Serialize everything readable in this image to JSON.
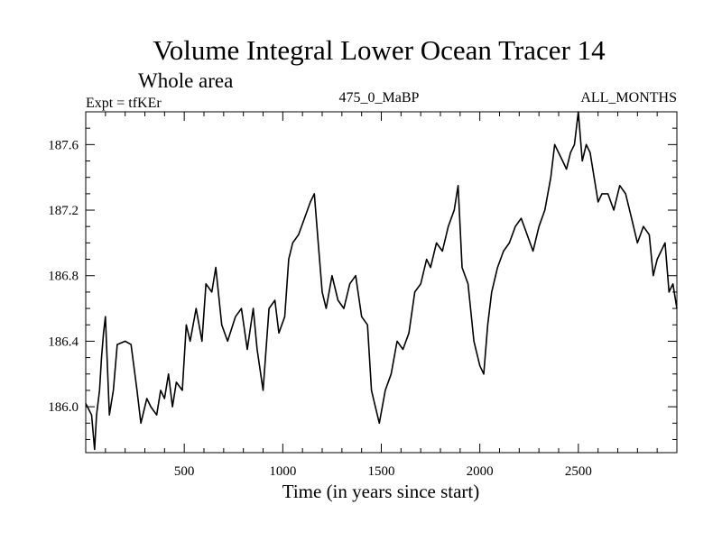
{
  "chart_data": {
    "type": "line",
    "title": "Volume Integral Lower Ocean Tracer 14",
    "subtitle": "Whole area",
    "left_label": "Expt = tfKEr",
    "center_label": "475_0_MaBP",
    "right_label": "ALL_MONTHS",
    "xlabel": "Time (in years since start)",
    "ylabel": "",
    "xlim": [
      0,
      3000
    ],
    "ylim": [
      185.72,
      187.8
    ],
    "xticks": [
      500,
      1000,
      1500,
      2000,
      2500
    ],
    "xtick_labels": [
      "500",
      "1000",
      "1500",
      "2000",
      "2500"
    ],
    "yticks": [
      186.0,
      186.4,
      186.8,
      187.2,
      187.6
    ],
    "ytick_labels": [
      "186.0",
      "186.4",
      "186.8",
      "187.2",
      "187.6"
    ],
    "grid": false,
    "series": [
      {
        "color": "#000000",
        "x": [
          0,
          30,
          45,
          55,
          70,
          80,
          90,
          100,
          120,
          140,
          160,
          200,
          230,
          260,
          280,
          310,
          330,
          360,
          380,
          400,
          420,
          440,
          460,
          490,
          510,
          530,
          560,
          590,
          610,
          640,
          660,
          690,
          720,
          760,
          790,
          820,
          850,
          870,
          900,
          930,
          960,
          980,
          1010,
          1030,
          1050,
          1080,
          1110,
          1140,
          1160,
          1180,
          1200,
          1220,
          1250,
          1280,
          1310,
          1340,
          1370,
          1400,
          1430,
          1450,
          1470,
          1490,
          1520,
          1550,
          1580,
          1610,
          1640,
          1670,
          1700,
          1730,
          1750,
          1780,
          1810,
          1840,
          1870,
          1890,
          1910,
          1940,
          1970,
          2000,
          2020,
          2040,
          2060,
          2090,
          2120,
          2150,
          2180,
          2210,
          2240,
          2270,
          2300,
          2330,
          2360,
          2380,
          2400,
          2420,
          2440,
          2460,
          2480,
          2500,
          2520,
          2540,
          2560,
          2580,
          2600,
          2620,
          2650,
          2680,
          2710,
          2740,
          2770,
          2800,
          2830,
          2860,
          2880,
          2900,
          2920,
          2940,
          2960,
          2980,
          3000
        ],
        "y": [
          186.02,
          185.95,
          185.74,
          185.95,
          186.1,
          186.3,
          186.45,
          186.55,
          185.95,
          186.1,
          186.38,
          186.4,
          186.38,
          186.1,
          185.9,
          186.05,
          186.0,
          185.95,
          186.1,
          186.05,
          186.2,
          186.0,
          186.15,
          186.1,
          186.5,
          186.4,
          186.6,
          186.4,
          186.75,
          186.7,
          186.85,
          186.5,
          186.4,
          186.55,
          186.6,
          186.35,
          186.6,
          186.35,
          186.1,
          186.6,
          186.65,
          186.45,
          186.55,
          186.9,
          187.0,
          187.05,
          187.15,
          187.25,
          187.3,
          187.0,
          186.7,
          186.6,
          186.8,
          186.65,
          186.6,
          186.75,
          186.8,
          186.55,
          186.5,
          186.1,
          186.0,
          185.9,
          186.1,
          186.2,
          186.4,
          186.35,
          186.45,
          186.7,
          186.75,
          186.9,
          186.85,
          187.0,
          186.95,
          187.1,
          187.2,
          187.35,
          186.85,
          186.75,
          186.4,
          186.25,
          186.2,
          186.5,
          186.7,
          186.85,
          186.95,
          187.0,
          187.1,
          187.15,
          187.05,
          186.95,
          187.1,
          187.2,
          187.4,
          187.6,
          187.55,
          187.5,
          187.45,
          187.55,
          187.6,
          187.8,
          187.5,
          187.6,
          187.55,
          187.4,
          187.25,
          187.3,
          187.3,
          187.2,
          187.35,
          187.3,
          187.15,
          187.0,
          187.1,
          187.05,
          186.8,
          186.9,
          186.95,
          187.0,
          186.7,
          186.75,
          186.6
        ]
      }
    ]
  }
}
